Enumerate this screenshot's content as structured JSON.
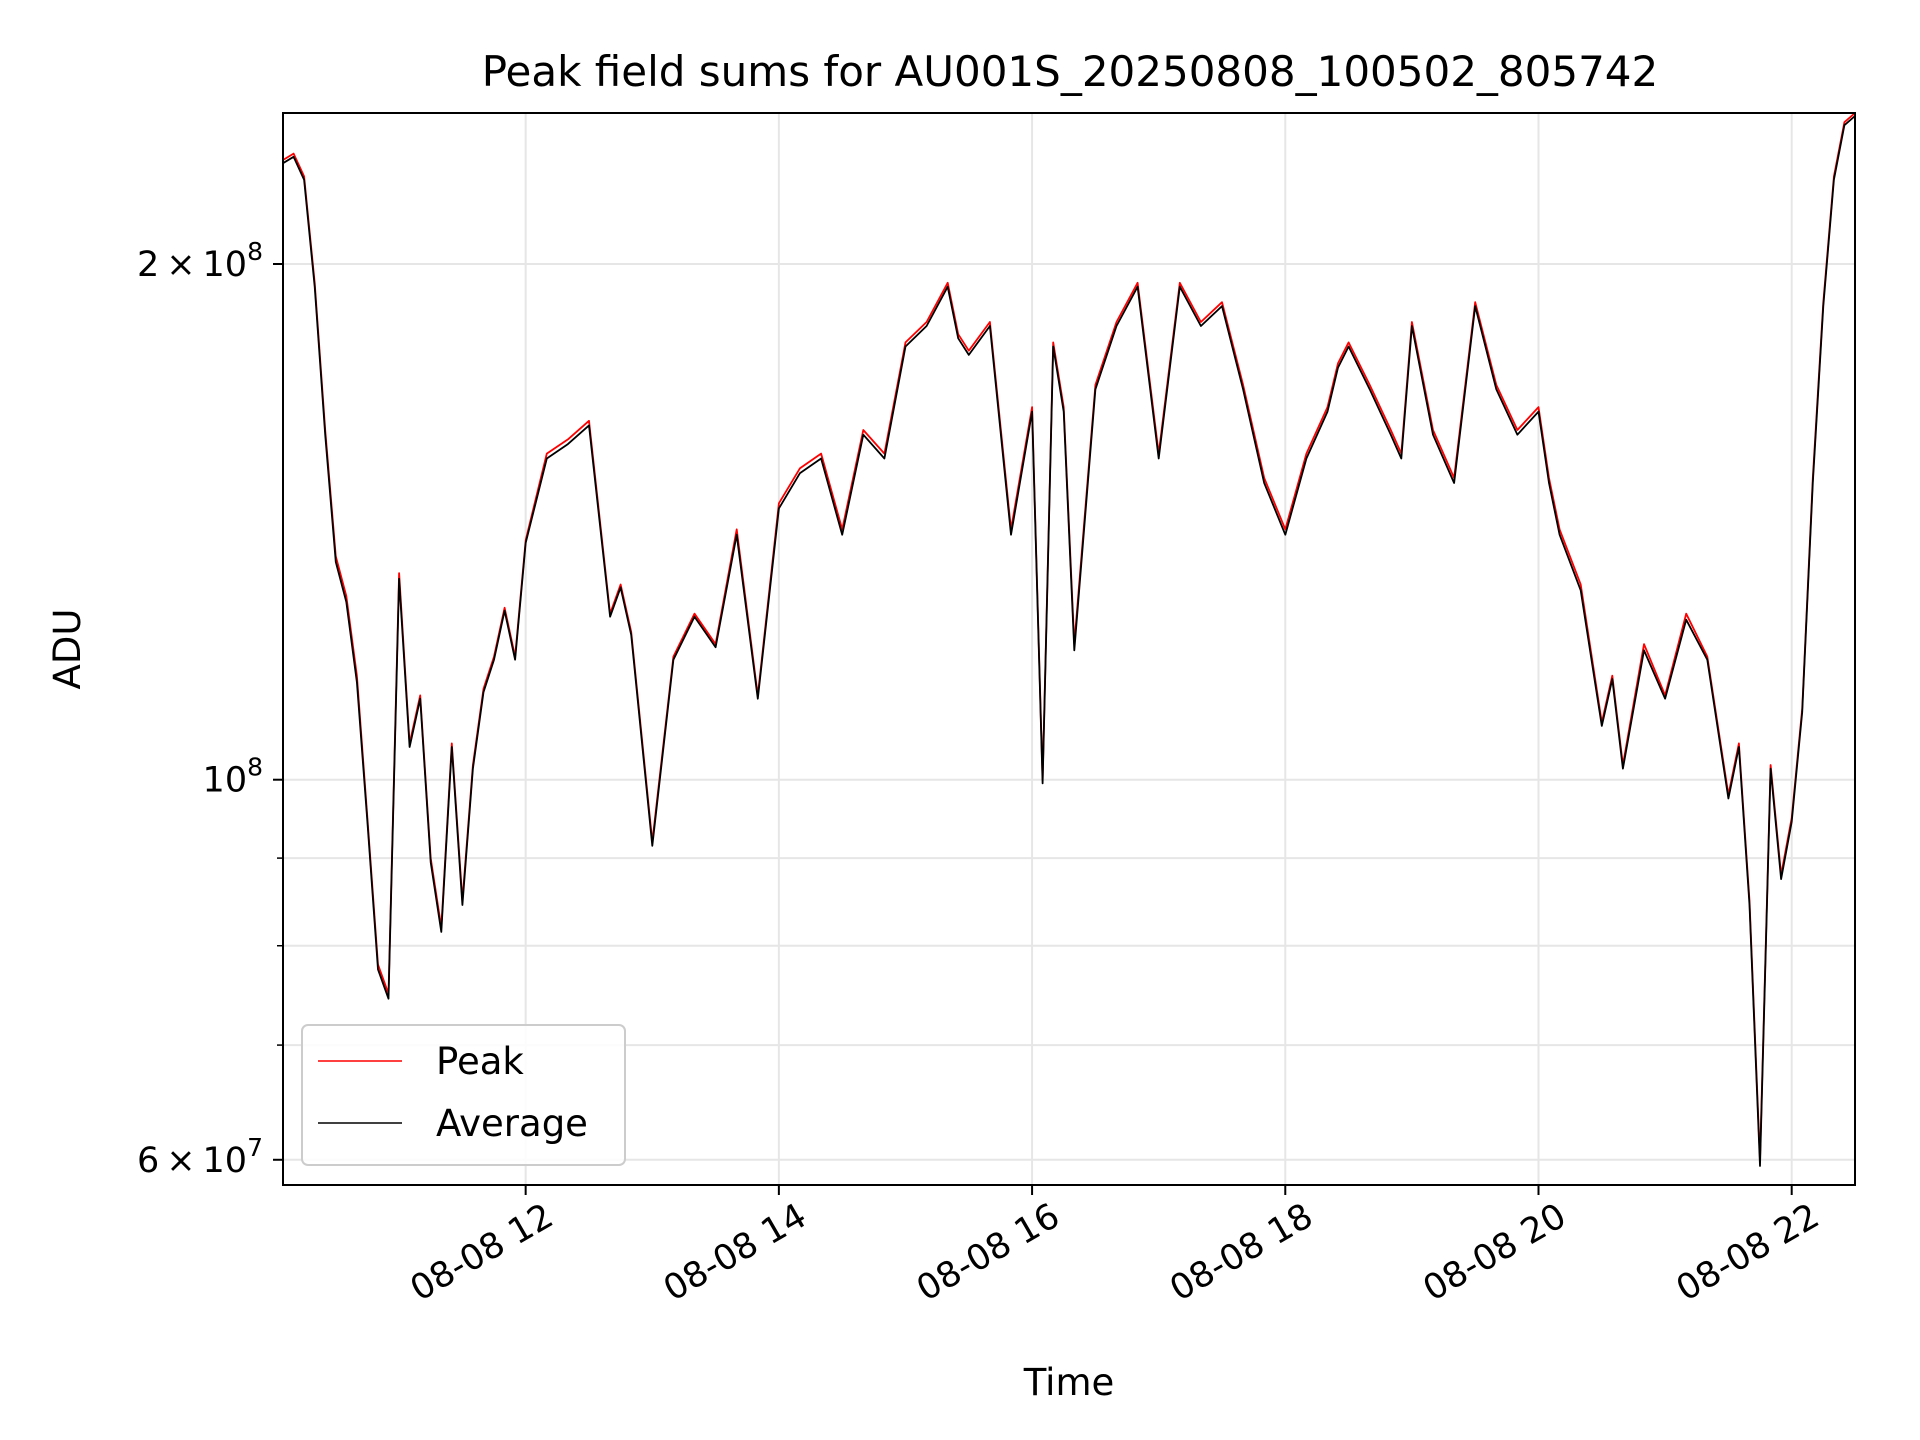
{
  "chart_data": {
    "type": "line",
    "title": "Peak field sums for AU001S_20250808_100502_805742",
    "xlabel": "Time",
    "ylabel": "ADU",
    "y_scale": "log",
    "xlim": [
      "2025-08-08 10:05",
      "2025-08-08 22:30"
    ],
    "ylim": [
      58000000,
      245000000
    ],
    "x_ticks": [
      {
        "label": "08-08 12",
        "value": "2025-08-08 12:00"
      },
      {
        "label": "08-08 14",
        "value": "2025-08-08 14:00"
      },
      {
        "label": "08-08 16",
        "value": "2025-08-08 16:00"
      },
      {
        "label": "08-08 18",
        "value": "2025-08-08 18:00"
      },
      {
        "label": "08-08 20",
        "value": "2025-08-08 20:00"
      },
      {
        "label": "08-08 22",
        "value": "2025-08-08 22:00"
      }
    ],
    "y_ticks_major": [
      {
        "label_base": "2 × 10",
        "label_exp": "8",
        "value": 200000000
      },
      {
        "label_base": "10",
        "label_exp": "8",
        "value": 100000000
      },
      {
        "label_base": "6 × 10",
        "label_exp": "7",
        "value": 60000000
      }
    ],
    "y_ticks_minor": [
      70000000,
      80000000,
      90000000,
      300000000
    ],
    "grid": true,
    "legend": {
      "position": "lower left",
      "entries": [
        "Peak",
        "Average"
      ]
    },
    "series": [
      {
        "name": "Peak",
        "color": "#ff0000",
        "x": [
          "2025-08-08 10:05",
          "2025-08-08 10:10",
          "2025-08-08 10:15",
          "2025-08-08 10:20",
          "2025-08-08 10:25",
          "2025-08-08 10:30",
          "2025-08-08 10:35",
          "2025-08-08 10:40",
          "2025-08-08 10:45",
          "2025-08-08 10:50",
          "2025-08-08 10:55",
          "2025-08-08 11:00",
          "2025-08-08 11:05",
          "2025-08-08 11:10",
          "2025-08-08 11:15",
          "2025-08-08 11:20",
          "2025-08-08 11:25",
          "2025-08-08 11:30",
          "2025-08-08 11:35",
          "2025-08-08 11:40",
          "2025-08-08 11:45",
          "2025-08-08 11:50",
          "2025-08-08 11:55",
          "2025-08-08 12:00",
          "2025-08-08 12:10",
          "2025-08-08 12:20",
          "2025-08-08 12:30",
          "2025-08-08 12:40",
          "2025-08-08 12:45",
          "2025-08-08 12:50",
          "2025-08-08 13:00",
          "2025-08-08 13:10",
          "2025-08-08 13:20",
          "2025-08-08 13:30",
          "2025-08-08 13:40",
          "2025-08-08 13:50",
          "2025-08-08 14:00",
          "2025-08-08 14:10",
          "2025-08-08 14:20",
          "2025-08-08 14:30",
          "2025-08-08 14:40",
          "2025-08-08 14:50",
          "2025-08-08 15:00",
          "2025-08-08 15:10",
          "2025-08-08 15:20",
          "2025-08-08 15:25",
          "2025-08-08 15:30",
          "2025-08-08 15:40",
          "2025-08-08 15:50",
          "2025-08-08 16:00",
          "2025-08-08 16:05",
          "2025-08-08 16:10",
          "2025-08-08 16:15",
          "2025-08-08 16:20",
          "2025-08-08 16:30",
          "2025-08-08 16:40",
          "2025-08-08 16:50",
          "2025-08-08 17:00",
          "2025-08-08 17:10",
          "2025-08-08 17:20",
          "2025-08-08 17:30",
          "2025-08-08 17:40",
          "2025-08-08 17:50",
          "2025-08-08 18:00",
          "2025-08-08 18:10",
          "2025-08-08 18:20",
          "2025-08-08 18:25",
          "2025-08-08 18:30",
          "2025-08-08 18:40",
          "2025-08-08 18:50",
          "2025-08-08 18:55",
          "2025-08-08 19:00",
          "2025-08-08 19:10",
          "2025-08-08 19:20",
          "2025-08-08 19:30",
          "2025-08-08 19:40",
          "2025-08-08 19:50",
          "2025-08-08 20:00",
          "2025-08-08 20:05",
          "2025-08-08 20:10",
          "2025-08-08 20:20",
          "2025-08-08 20:30",
          "2025-08-08 20:35",
          "2025-08-08 20:40",
          "2025-08-08 20:50",
          "2025-08-08 21:00",
          "2025-08-08 21:10",
          "2025-08-08 21:20",
          "2025-08-08 21:30",
          "2025-08-08 21:35",
          "2025-08-08 21:40",
          "2025-08-08 21:45",
          "2025-08-08 21:50",
          "2025-08-08 21:55",
          "2025-08-08 22:00",
          "2025-08-08 22:05",
          "2025-08-08 22:10",
          "2025-08-08 22:15",
          "2025-08-08 22:20",
          "2025-08-08 22:25",
          "2025-08-08 22:30"
        ],
        "values": [
          230000000,
          232000000,
          225000000,
          195000000,
          160000000,
          135000000,
          128000000,
          115000000,
          95000000,
          78000000,
          75000000,
          132000000,
          105000000,
          112000000,
          90000000,
          82000000,
          105000000,
          85000000,
          102000000,
          113000000,
          118000000,
          126000000,
          118000000,
          138000000,
          155000000,
          158000000,
          162000000,
          125000000,
          130000000,
          122000000,
          92000000,
          118000000,
          125000000,
          120000000,
          140000000,
          112000000,
          145000000,
          152000000,
          155000000,
          140000000,
          160000000,
          155000000,
          180000000,
          185000000,
          195000000,
          182000000,
          178000000,
          185000000,
          140000000,
          165000000,
          100000000,
          180000000,
          165000000,
          120000000,
          170000000,
          185000000,
          195000000,
          155000000,
          195000000,
          185000000,
          190000000,
          170000000,
          150000000,
          140000000,
          155000000,
          165000000,
          175000000,
          180000000,
          170000000,
          160000000,
          155000000,
          185000000,
          160000000,
          150000000,
          190000000,
          170000000,
          160000000,
          165000000,
          150000000,
          140000000,
          130000000,
          108000000,
          115000000,
          102000000,
          120000000,
          112000000,
          125000000,
          118000000,
          98000000,
          105000000,
          85000000,
          60000000,
          102000000,
          88000000,
          95000000,
          110000000,
          150000000,
          190000000,
          225000000,
          242000000,
          245000000
        ]
      },
      {
        "name": "Average",
        "color": "#000000",
        "x": [
          "2025-08-08 10:05",
          "2025-08-08 10:10",
          "2025-08-08 10:15",
          "2025-08-08 10:20",
          "2025-08-08 10:25",
          "2025-08-08 10:30",
          "2025-08-08 10:35",
          "2025-08-08 10:40",
          "2025-08-08 10:45",
          "2025-08-08 10:50",
          "2025-08-08 10:55",
          "2025-08-08 11:00",
          "2025-08-08 11:05",
          "2025-08-08 11:10",
          "2025-08-08 11:15",
          "2025-08-08 11:20",
          "2025-08-08 11:25",
          "2025-08-08 11:30",
          "2025-08-08 11:35",
          "2025-08-08 11:40",
          "2025-08-08 11:45",
          "2025-08-08 11:50",
          "2025-08-08 11:55",
          "2025-08-08 12:00",
          "2025-08-08 12:10",
          "2025-08-08 12:20",
          "2025-08-08 12:30",
          "2025-08-08 12:40",
          "2025-08-08 12:45",
          "2025-08-08 12:50",
          "2025-08-08 13:00",
          "2025-08-08 13:10",
          "2025-08-08 13:20",
          "2025-08-08 13:30",
          "2025-08-08 13:40",
          "2025-08-08 13:50",
          "2025-08-08 14:00",
          "2025-08-08 14:10",
          "2025-08-08 14:20",
          "2025-08-08 14:30",
          "2025-08-08 14:40",
          "2025-08-08 14:50",
          "2025-08-08 15:00",
          "2025-08-08 15:10",
          "2025-08-08 15:20",
          "2025-08-08 15:25",
          "2025-08-08 15:30",
          "2025-08-08 15:40",
          "2025-08-08 15:50",
          "2025-08-08 16:00",
          "2025-08-08 16:05",
          "2025-08-08 16:10",
          "2025-08-08 16:15",
          "2025-08-08 16:20",
          "2025-08-08 16:30",
          "2025-08-08 16:40",
          "2025-08-08 16:50",
          "2025-08-08 17:00",
          "2025-08-08 17:10",
          "2025-08-08 17:20",
          "2025-08-08 17:30",
          "2025-08-08 17:40",
          "2025-08-08 17:50",
          "2025-08-08 18:00",
          "2025-08-08 18:10",
          "2025-08-08 18:20",
          "2025-08-08 18:25",
          "2025-08-08 18:30",
          "2025-08-08 18:40",
          "2025-08-08 18:50",
          "2025-08-08 18:55",
          "2025-08-08 19:00",
          "2025-08-08 19:10",
          "2025-08-08 19:20",
          "2025-08-08 19:30",
          "2025-08-08 19:40",
          "2025-08-08 19:50",
          "2025-08-08 20:00",
          "2025-08-08 20:05",
          "2025-08-08 20:10",
          "2025-08-08 20:20",
          "2025-08-08 20:30",
          "2025-08-08 20:35",
          "2025-08-08 20:40",
          "2025-08-08 20:50",
          "2025-08-08 21:00",
          "2025-08-08 21:10",
          "2025-08-08 21:20",
          "2025-08-08 21:30",
          "2025-08-08 21:35",
          "2025-08-08 21:40",
          "2025-08-08 21:45",
          "2025-08-08 21:50",
          "2025-08-08 21:55",
          "2025-08-08 22:00",
          "2025-08-08 22:05",
          "2025-08-08 22:10",
          "2025-08-08 22:15",
          "2025-08-08 22:20",
          "2025-08-08 22:25",
          "2025-08-08 22:30"
        ],
        "values": [
          229000000,
          231000000,
          224000000,
          194000000,
          159000000,
          134000000,
          127000000,
          114000000,
          94500000,
          77500000,
          74500000,
          131000000,
          104500000,
          111500000,
          89500000,
          81500000,
          104500000,
          84500000,
          101500000,
          112500000,
          117500000,
          125500000,
          117500000,
          137500000,
          154000000,
          157000000,
          161000000,
          124500000,
          129500000,
          121500000,
          91500000,
          117500000,
          124500000,
          119500000,
          139000000,
          111500000,
          144000000,
          151000000,
          154000000,
          139000000,
          159000000,
          154000000,
          179000000,
          184000000,
          194000000,
          181000000,
          177000000,
          184000000,
          139000000,
          164000000,
          99500000,
          179000000,
          164000000,
          119000000,
          169000000,
          184000000,
          194000000,
          154000000,
          194000000,
          184000000,
          189000000,
          169000000,
          149000000,
          139000000,
          154000000,
          164000000,
          174000000,
          179000000,
          169000000,
          159000000,
          154000000,
          184000000,
          159000000,
          149000000,
          189000000,
          169000000,
          159000000,
          164000000,
          149000000,
          139000000,
          129000000,
          107500000,
          114500000,
          101500000,
          119000000,
          111500000,
          124000000,
          117500000,
          97500000,
          104500000,
          84500000,
          59500000,
          101500000,
          87500000,
          94500000,
          109500000,
          149000000,
          189000000,
          224000000,
          241000000,
          244000000
        ]
      }
    ]
  }
}
